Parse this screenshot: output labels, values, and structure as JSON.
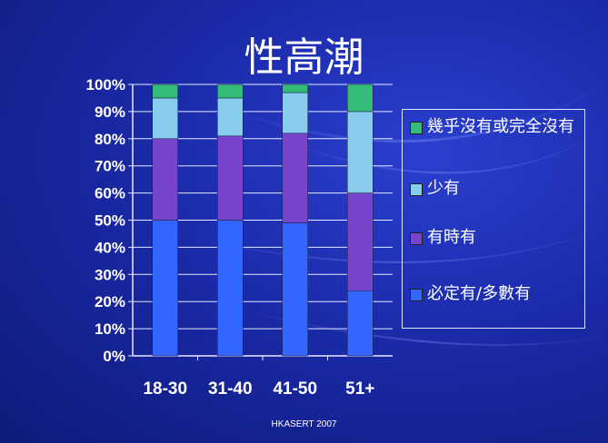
{
  "slide": {
    "title": "性高潮",
    "footer": "HKASERT 2007"
  },
  "chart_data": {
    "type": "bar",
    "stacked": true,
    "categories": [
      "18-30",
      "31-40",
      "41-50",
      "51+"
    ],
    "series": [
      {
        "name": "必定有/多數有",
        "color": "#3366ff",
        "values": [
          50,
          50,
          49,
          24
        ]
      },
      {
        "name": "有時有",
        "color": "#7744cc",
        "values": [
          30,
          31,
          33,
          36
        ]
      },
      {
        "name": "少有",
        "color": "#88ccee",
        "values": [
          15,
          14,
          15,
          30
        ]
      },
      {
        "name": "幾乎沒有或完全沒有",
        "color": "#33bb77",
        "values": [
          5,
          5,
          3,
          10
        ]
      }
    ],
    "y_ticks": [
      "0%",
      "10%",
      "20%",
      "30%",
      "40%",
      "50%",
      "60%",
      "70%",
      "80%",
      "90%",
      "100%"
    ],
    "ylim": [
      0,
      100
    ],
    "grid": true,
    "legend_position": "right"
  }
}
